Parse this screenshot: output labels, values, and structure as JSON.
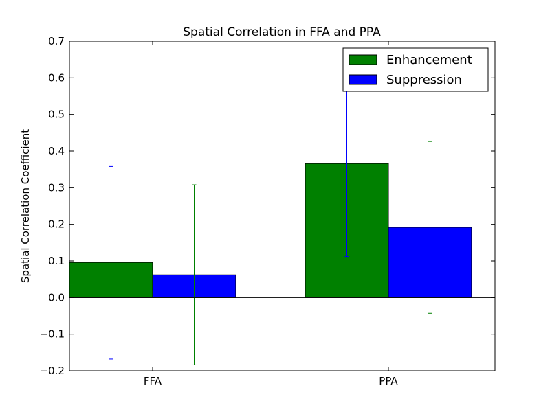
{
  "chart_data": {
    "type": "bar",
    "title": "Spatial Correlation in FFA and PPA",
    "xlabel": "",
    "ylabel": "Spatial Correlation Coefficient",
    "ylim": [
      -0.2,
      0.7
    ],
    "yticks": [
      -0.2,
      -0.1,
      0.0,
      0.1,
      0.2,
      0.3,
      0.4,
      0.5,
      0.6,
      0.7
    ],
    "ytick_labels": [
      "−0.2",
      "−0.1",
      "0.0",
      "0.1",
      "0.2",
      "0.3",
      "0.4",
      "0.5",
      "0.6",
      "0.7"
    ],
    "categories": [
      "FFA",
      "PPA"
    ],
    "series": [
      {
        "name": "Enhancement",
        "color": "#008000",
        "values": [
          0.096,
          0.366
        ],
        "error_bar_color": "#0000ff",
        "error_low": [
          -0.168,
          0.112
        ],
        "error_high": [
          0.358,
          0.62
        ]
      },
      {
        "name": "Suppression",
        "color": "#0000ff",
        "values": [
          0.062,
          0.192
        ],
        "error_bar_color": "#008000",
        "error_low": [
          -0.184,
          -0.043
        ],
        "error_high": [
          0.308,
          0.426
        ]
      }
    ],
    "legend_position": "top-right",
    "grid": false,
    "zero_line": true
  }
}
